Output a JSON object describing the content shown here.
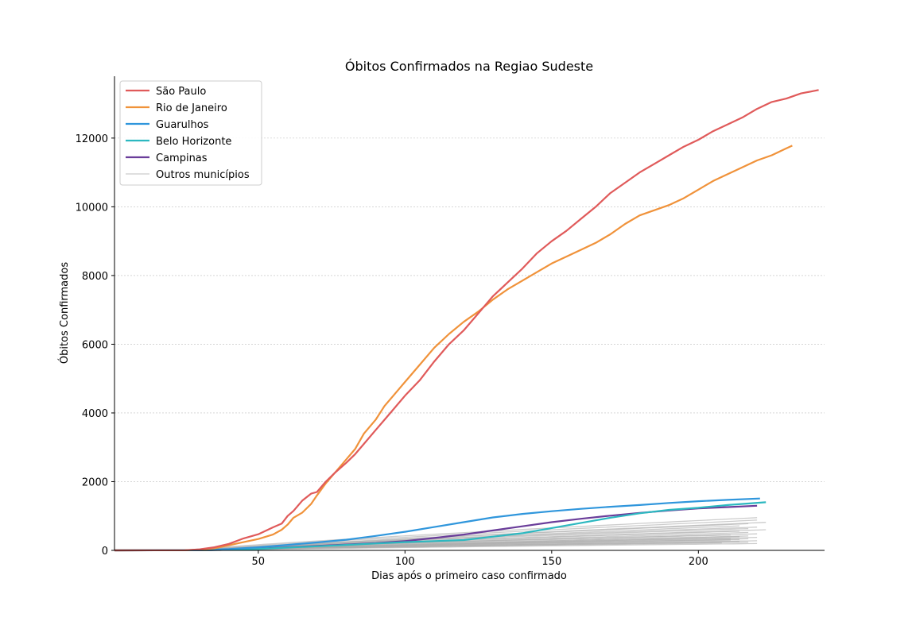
{
  "chart_data": {
    "type": "line",
    "title": "Óbitos Confirmados na Regiao Sudeste",
    "xlabel": "Dias após o primeiro caso confirmado",
    "ylabel": "Óbitos Confirmados",
    "xlim": [
      1,
      243
    ],
    "ylim": [
      0,
      13800
    ],
    "xticks": [
      50,
      100,
      150,
      200
    ],
    "yticks": [
      0,
      2000,
      4000,
      6000,
      8000,
      10000,
      12000
    ],
    "grid": "y-dashed",
    "legend_position": "top-left",
    "series": [
      {
        "name": "São Paulo",
        "color": "#e05a5a",
        "points": [
          [
            1,
            0
          ],
          [
            25,
            5
          ],
          [
            30,
            30
          ],
          [
            35,
            90
          ],
          [
            40,
            190
          ],
          [
            45,
            350
          ],
          [
            50,
            470
          ],
          [
            55,
            670
          ],
          [
            58,
            780
          ],
          [
            60,
            1000
          ],
          [
            62,
            1150
          ],
          [
            65,
            1450
          ],
          [
            68,
            1650
          ],
          [
            70,
            1700
          ],
          [
            73,
            2000
          ],
          [
            76,
            2250
          ],
          [
            80,
            2550
          ],
          [
            83,
            2800
          ],
          [
            86,
            3100
          ],
          [
            90,
            3500
          ],
          [
            93,
            3800
          ],
          [
            96,
            4100
          ],
          [
            100,
            4500
          ],
          [
            105,
            4950
          ],
          [
            110,
            5500
          ],
          [
            115,
            6000
          ],
          [
            120,
            6400
          ],
          [
            125,
            6900
          ],
          [
            130,
            7400
          ],
          [
            135,
            7800
          ],
          [
            140,
            8200
          ],
          [
            145,
            8650
          ],
          [
            150,
            9000
          ],
          [
            155,
            9300
          ],
          [
            160,
            9650
          ],
          [
            165,
            10000
          ],
          [
            170,
            10400
          ],
          [
            175,
            10700
          ],
          [
            180,
            11000
          ],
          [
            185,
            11250
          ],
          [
            190,
            11500
          ],
          [
            195,
            11750
          ],
          [
            200,
            11950
          ],
          [
            205,
            12200
          ],
          [
            210,
            12400
          ],
          [
            215,
            12600
          ],
          [
            220,
            12850
          ],
          [
            225,
            13050
          ],
          [
            230,
            13150
          ],
          [
            235,
            13300
          ],
          [
            241,
            13400
          ]
        ]
      },
      {
        "name": "Rio de Janeiro",
        "color": "#f0923a",
        "points": [
          [
            1,
            0
          ],
          [
            25,
            5
          ],
          [
            30,
            20
          ],
          [
            35,
            60
          ],
          [
            40,
            150
          ],
          [
            45,
            240
          ],
          [
            50,
            330
          ],
          [
            55,
            460
          ],
          [
            58,
            600
          ],
          [
            60,
            750
          ],
          [
            62,
            950
          ],
          [
            65,
            1100
          ],
          [
            68,
            1350
          ],
          [
            70,
            1600
          ],
          [
            73,
            1950
          ],
          [
            76,
            2250
          ],
          [
            80,
            2650
          ],
          [
            83,
            2950
          ],
          [
            86,
            3400
          ],
          [
            90,
            3800
          ],
          [
            93,
            4200
          ],
          [
            96,
            4500
          ],
          [
            100,
            4900
          ],
          [
            105,
            5400
          ],
          [
            110,
            5900
          ],
          [
            115,
            6300
          ],
          [
            120,
            6650
          ],
          [
            125,
            6950
          ],
          [
            130,
            7300
          ],
          [
            135,
            7600
          ],
          [
            140,
            7850
          ],
          [
            145,
            8100
          ],
          [
            150,
            8350
          ],
          [
            155,
            8550
          ],
          [
            160,
            8750
          ],
          [
            165,
            8950
          ],
          [
            170,
            9200
          ],
          [
            175,
            9500
          ],
          [
            180,
            9750
          ],
          [
            185,
            9900
          ],
          [
            190,
            10050
          ],
          [
            195,
            10250
          ],
          [
            200,
            10500
          ],
          [
            205,
            10750
          ],
          [
            210,
            10950
          ],
          [
            215,
            11150
          ],
          [
            220,
            11350
          ],
          [
            225,
            11500
          ],
          [
            230,
            11700
          ],
          [
            232,
            11780
          ]
        ]
      },
      {
        "name": "Guarulhos",
        "color": "#2f96dc",
        "points": [
          [
            1,
            0
          ],
          [
            30,
            10
          ],
          [
            40,
            40
          ],
          [
            50,
            90
          ],
          [
            60,
            160
          ],
          [
            70,
            230
          ],
          [
            80,
            310
          ],
          [
            90,
            420
          ],
          [
            100,
            540
          ],
          [
            110,
            680
          ],
          [
            120,
            820
          ],
          [
            130,
            960
          ],
          [
            140,
            1060
          ],
          [
            150,
            1140
          ],
          [
            160,
            1210
          ],
          [
            170,
            1270
          ],
          [
            180,
            1320
          ],
          [
            190,
            1380
          ],
          [
            200,
            1430
          ],
          [
            210,
            1470
          ],
          [
            221,
            1510
          ]
        ]
      },
      {
        "name": "Belo Horizonte",
        "color": "#2cb8c0",
        "points": [
          [
            1,
            0
          ],
          [
            30,
            5
          ],
          [
            40,
            20
          ],
          [
            50,
            45
          ],
          [
            60,
            80
          ],
          [
            70,
            120
          ],
          [
            80,
            160
          ],
          [
            90,
            200
          ],
          [
            100,
            240
          ],
          [
            110,
            270
          ],
          [
            120,
            300
          ],
          [
            130,
            400
          ],
          [
            140,
            500
          ],
          [
            150,
            650
          ],
          [
            160,
            800
          ],
          [
            170,
            950
          ],
          [
            180,
            1080
          ],
          [
            190,
            1180
          ],
          [
            200,
            1240
          ],
          [
            210,
            1320
          ],
          [
            223,
            1400
          ]
        ]
      },
      {
        "name": "Campinas",
        "color": "#6a3d9a",
        "points": [
          [
            1,
            0
          ],
          [
            30,
            5
          ],
          [
            40,
            20
          ],
          [
            50,
            50
          ],
          [
            60,
            90
          ],
          [
            70,
            130
          ],
          [
            80,
            170
          ],
          [
            90,
            210
          ],
          [
            100,
            270
          ],
          [
            110,
            360
          ],
          [
            120,
            460
          ],
          [
            130,
            580
          ],
          [
            140,
            700
          ],
          [
            150,
            820
          ],
          [
            160,
            920
          ],
          [
            170,
            1010
          ],
          [
            180,
            1090
          ],
          [
            190,
            1160
          ],
          [
            200,
            1220
          ],
          [
            210,
            1260
          ],
          [
            220,
            1300
          ]
        ]
      }
    ],
    "others": {
      "name": "Outros municípios",
      "color": "#aaaaaa",
      "finals": [
        960,
        880,
        820,
        780,
        720,
        680,
        640,
        600,
        560,
        520,
        480,
        450,
        420,
        400,
        380,
        360,
        340,
        320,
        300,
        280,
        260,
        240,
        220,
        200
      ],
      "ends": [
        222,
        220,
        224,
        218,
        216,
        221,
        219,
        223,
        215,
        217,
        220,
        212,
        218,
        214,
        221,
        213,
        219,
        216,
        211,
        220,
        215,
        217,
        210,
        222
      ]
    }
  }
}
